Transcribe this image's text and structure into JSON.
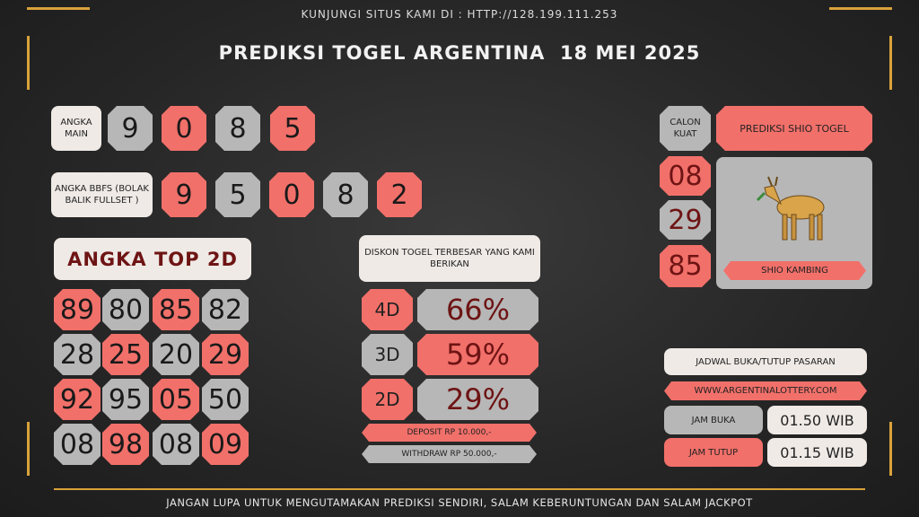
{
  "header": {
    "visit": "KUNJUNGI SITUS KAMI DI : HTTP://128.199.111.253",
    "title": "PREDIKSI TOGEL ARGENTINA  18 MEI 2025"
  },
  "angka_main": {
    "label": "ANGKA MAIN",
    "digits": [
      "9",
      "0",
      "8",
      "5"
    ]
  },
  "bbfs": {
    "label": "ANGKA BBFS (BOLAK BALIK FULLSET )",
    "digits": [
      "9",
      "5",
      "0",
      "8",
      "2"
    ]
  },
  "top2d": {
    "title": "ANGKA TOP 2D",
    "rows": [
      [
        "89",
        "80",
        "85",
        "82"
      ],
      [
        "28",
        "25",
        "20",
        "29"
      ],
      [
        "92",
        "95",
        "05",
        "50"
      ],
      [
        "08",
        "98",
        "08",
        "09"
      ]
    ]
  },
  "diskon": {
    "title": "DISKON TOGEL TERBESAR YANG KAMI BERIKAN",
    "rows": [
      {
        "label": "4D",
        "value": "66%"
      },
      {
        "label": "3D",
        "value": "59%"
      },
      {
        "label": "2D",
        "value": "29%"
      }
    ],
    "deposit": "DEPOSIT RP 10.000,-",
    "withdraw": "WITHDRAW RP 50.000,-"
  },
  "shio": {
    "calon": "CALON KUAT",
    "title": "PREDIKSI SHIO TOGEL",
    "numbers": [
      "08",
      "29",
      "85"
    ],
    "name": "SHIO KAMBING"
  },
  "jadwal": {
    "title": "JADWAL BUKA/TUTUP PASARAN",
    "site": "WWW.ARGENTINALOTTERY.COM",
    "buka_label": "JAM BUKA",
    "buka": "01.50 WIB",
    "tutup_label": "JAM TUTUP",
    "tutup": "01.15 WIB"
  },
  "footer": "JANGAN LUPA UNTUK MENGUTAMAKAN PREDIKSI SENDIRI, SALAM KEBERUNTUNGAN DAN SALAM JACKPOT"
}
